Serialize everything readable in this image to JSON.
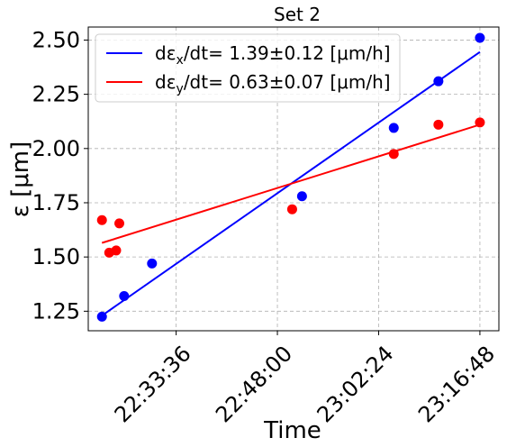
{
  "chart_data": {
    "type": "scatter",
    "title": "Set 2",
    "xlabel": "Time",
    "ylabel": "ε [μm]",
    "x_ticks": [
      "22:33:36",
      "22:48:00",
      "23:02:24",
      "23:16:48"
    ],
    "y_ticks": [
      "1.25",
      "1.50",
      "1.75",
      "2.00",
      "2.25",
      "2.50"
    ],
    "ylim": [
      1.16,
      2.56
    ],
    "xlim": [
      "22:21:06",
      "23:19:30"
    ],
    "grid": true,
    "legend_position": "top-left",
    "series": [
      {
        "name": "dε_x/dt= 1.39±0.12 [μm/h]",
        "legend_main": "dε",
        "legend_sub": "x",
        "legend_rest": "/dt= 1.39±0.12 [μm/h]",
        "color": "#0000ff",
        "points": [
          {
            "x": "22:23:03",
            "y": 1.225
          },
          {
            "x": "22:26:12",
            "y": 1.32
          },
          {
            "x": "22:30:10",
            "y": 1.47
          },
          {
            "x": "22:51:30",
            "y": 1.78
          },
          {
            "x": "23:04:33",
            "y": 2.095
          },
          {
            "x": "23:10:54",
            "y": 2.31
          },
          {
            "x": "23:16:48",
            "y": 2.51
          }
        ],
        "fit": {
          "x": [
            "22:23:03",
            "23:16:48"
          ],
          "y": [
            1.23,
            2.445
          ]
        }
      },
      {
        "name": "dε_y/dt= 0.63±0.07 [μm/h]",
        "legend_main": "dε",
        "legend_sub": "y",
        "legend_rest": "/dt= 0.63±0.07 [μm/h]",
        "color": "#ff0000",
        "points": [
          {
            "x": "22:23:03",
            "y": 1.67
          },
          {
            "x": "22:24:05",
            "y": 1.52
          },
          {
            "x": "22:25:04",
            "y": 1.53
          },
          {
            "x": "22:25:31",
            "y": 1.655
          },
          {
            "x": "22:50:06",
            "y": 1.72
          },
          {
            "x": "23:04:33",
            "y": 1.975
          },
          {
            "x": "23:10:54",
            "y": 2.11
          },
          {
            "x": "23:16:48",
            "y": 2.12
          }
        ],
        "fit": {
          "x": [
            "22:23:03",
            "23:16:48"
          ],
          "y": [
            1.565,
            2.11
          ]
        }
      }
    ]
  }
}
